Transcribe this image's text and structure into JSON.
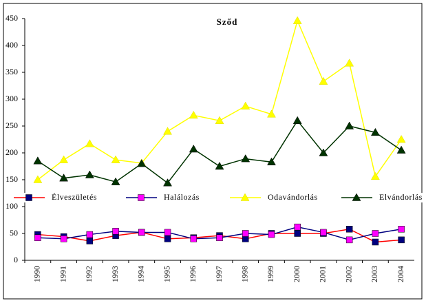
{
  "chart_data": {
    "type": "line",
    "title": "Sződ",
    "categories": [
      "1990",
      "1991",
      "1992",
      "1993",
      "1994",
      "1995",
      "1996",
      "1997",
      "1998",
      "1999",
      "2000",
      "2001",
      "2002",
      "2003",
      "2004"
    ],
    "series": [
      {
        "name": "Élveszületés",
        "color": "#ff0000",
        "marker_color": "#000080",
        "marker": "square",
        "values": [
          48,
          44,
          36,
          46,
          52,
          40,
          42,
          46,
          40,
          50,
          50,
          50,
          58,
          34,
          38
        ]
      },
      {
        "name": "Halálozás",
        "color": "#000080",
        "marker_color": "#ff00ff",
        "marker": "square",
        "values": [
          42,
          40,
          48,
          54,
          52,
          52,
          40,
          42,
          50,
          48,
          62,
          52,
          38,
          50,
          58
        ]
      },
      {
        "name": "Odavándorlás",
        "color": "#ffff00",
        "marker_color": "#ffff00",
        "marker": "triangle",
        "values": [
          150,
          187,
          217,
          187,
          181,
          240,
          270,
          260,
          287,
          272,
          446,
          333,
          367,
          156,
          225
        ]
      },
      {
        "name": "Elvándorlás",
        "color": "#003300",
        "marker_color": "#003300",
        "marker": "triangle",
        "values": [
          185,
          153,
          159,
          146,
          180,
          144,
          207,
          175,
          189,
          183,
          260,
          200,
          250,
          238,
          205
        ]
      }
    ],
    "ylim": [
      0,
      450
    ],
    "yticks": [
      0,
      50,
      100,
      150,
      200,
      250,
      300,
      350,
      400,
      450
    ],
    "grid": false
  }
}
